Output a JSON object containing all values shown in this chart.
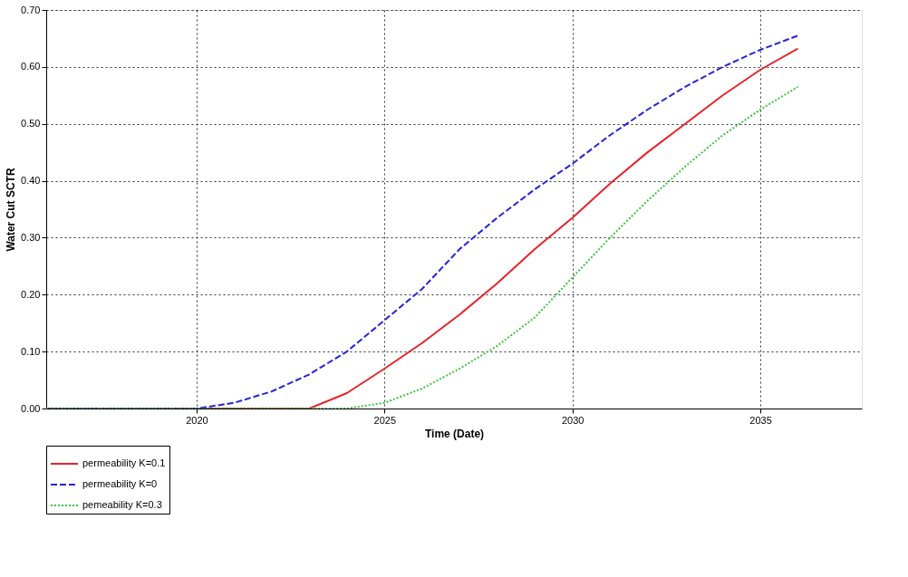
{
  "chart_data": {
    "type": "line",
    "xlabel": "Time (Date)",
    "ylabel": "Water Cut SCTR",
    "xlim": [
      2016,
      2037.7
    ],
    "xticks": [
      2020,
      2025,
      2030,
      2035
    ],
    "ylim": [
      0,
      0.7
    ],
    "yticks": [
      {
        "value": 0,
        "label": "0.00"
      },
      {
        "value": 0.1,
        "label": "0.10"
      },
      {
        "value": 0.2,
        "label": "0.20"
      },
      {
        "value": 0.3,
        "label": "0.30"
      },
      {
        "value": 0.4,
        "label": "0.40"
      },
      {
        "value": 0.5,
        "label": "0.50"
      },
      {
        "value": 0.6,
        "label": "0.60"
      },
      {
        "value": 0.7,
        "label": "0.70"
      }
    ],
    "grid": true,
    "legend": "bottom",
    "marker": "none",
    "series": [
      {
        "name": "permeability K=0.1",
        "color": "#e8232a",
        "line_style": "solid",
        "x": [
          2016,
          2023,
          2024,
          2025,
          2026,
          2027,
          2028,
          2029,
          2030,
          2031,
          2032,
          2033,
          2034,
          2035,
          2036
        ],
        "values": [
          0,
          0,
          0.027,
          0.07,
          0.115,
          0.165,
          0.22,
          0.28,
          0.335,
          0.395,
          0.45,
          0.5,
          0.55,
          0.595,
          0.632
        ]
      },
      {
        "name": "permeability K=0",
        "color": "#2424d8",
        "line_style": "dashed",
        "x": [
          2016,
          2020,
          2021,
          2022,
          2023,
          2024,
          2025,
          2026,
          2027,
          2028,
          2029,
          2030,
          2031,
          2032,
          2033,
          2034,
          2035,
          2036
        ],
        "values": [
          0,
          0,
          0.01,
          0.03,
          0.06,
          0.1,
          0.155,
          0.21,
          0.28,
          0.335,
          0.385,
          0.43,
          0.48,
          0.525,
          0.565,
          0.6,
          0.63,
          0.655
        ]
      },
      {
        "name": "pemeability K=0.3",
        "color": "#3ec43e",
        "line_style": "dotted",
        "x": [
          2016,
          2024,
          2025,
          2026,
          2027,
          2028,
          2029,
          2030,
          2031,
          2032,
          2033,
          2034,
          2035,
          2036
        ],
        "values": [
          0,
          0,
          0.01,
          0.035,
          0.07,
          0.11,
          0.16,
          0.23,
          0.3,
          0.365,
          0.425,
          0.48,
          0.525,
          0.565
        ]
      }
    ]
  }
}
